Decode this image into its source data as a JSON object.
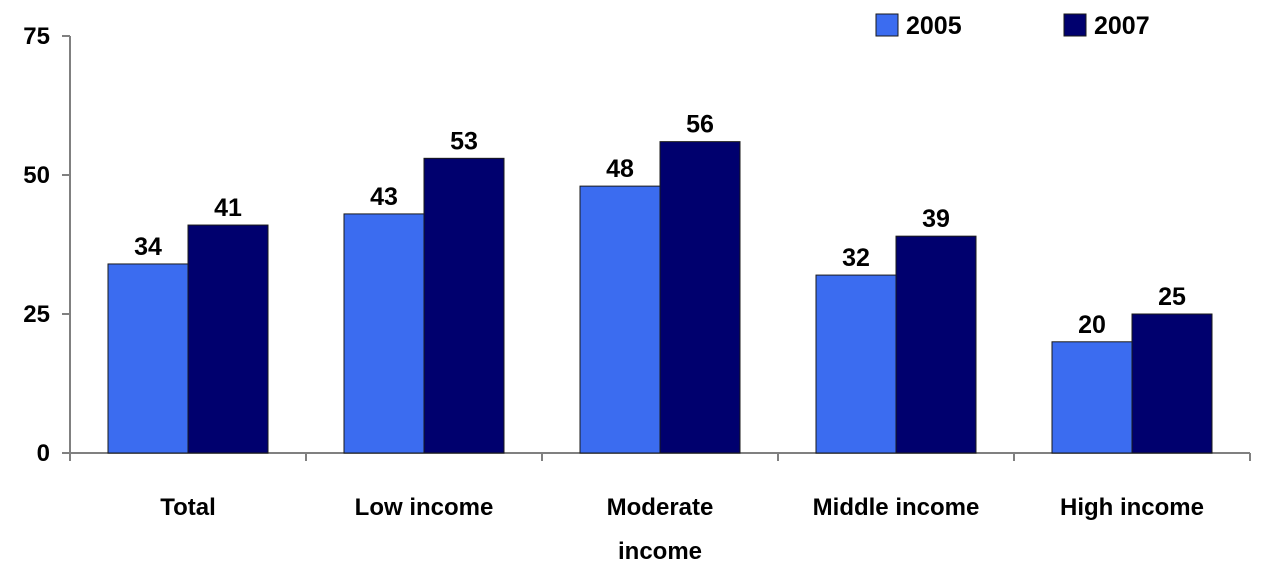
{
  "chart_data": {
    "type": "bar",
    "categories": [
      [
        "Total"
      ],
      [
        "Low income"
      ],
      [
        "Moderate",
        "income"
      ],
      [
        "Middle income"
      ],
      [
        "High income"
      ]
    ],
    "series": [
      {
        "name": "2005",
        "color": "#3B6CF0",
        "values": [
          34,
          43,
          48,
          32,
          20
        ]
      },
      {
        "name": "2007",
        "color": "#00006E",
        "values": [
          41,
          53,
          56,
          39,
          25
        ]
      }
    ],
    "yticks": [
      0,
      25,
      50,
      75
    ],
    "ylim": [
      0,
      75
    ],
    "grid": false,
    "legend": "top-right",
    "axis_color": "#808080"
  }
}
